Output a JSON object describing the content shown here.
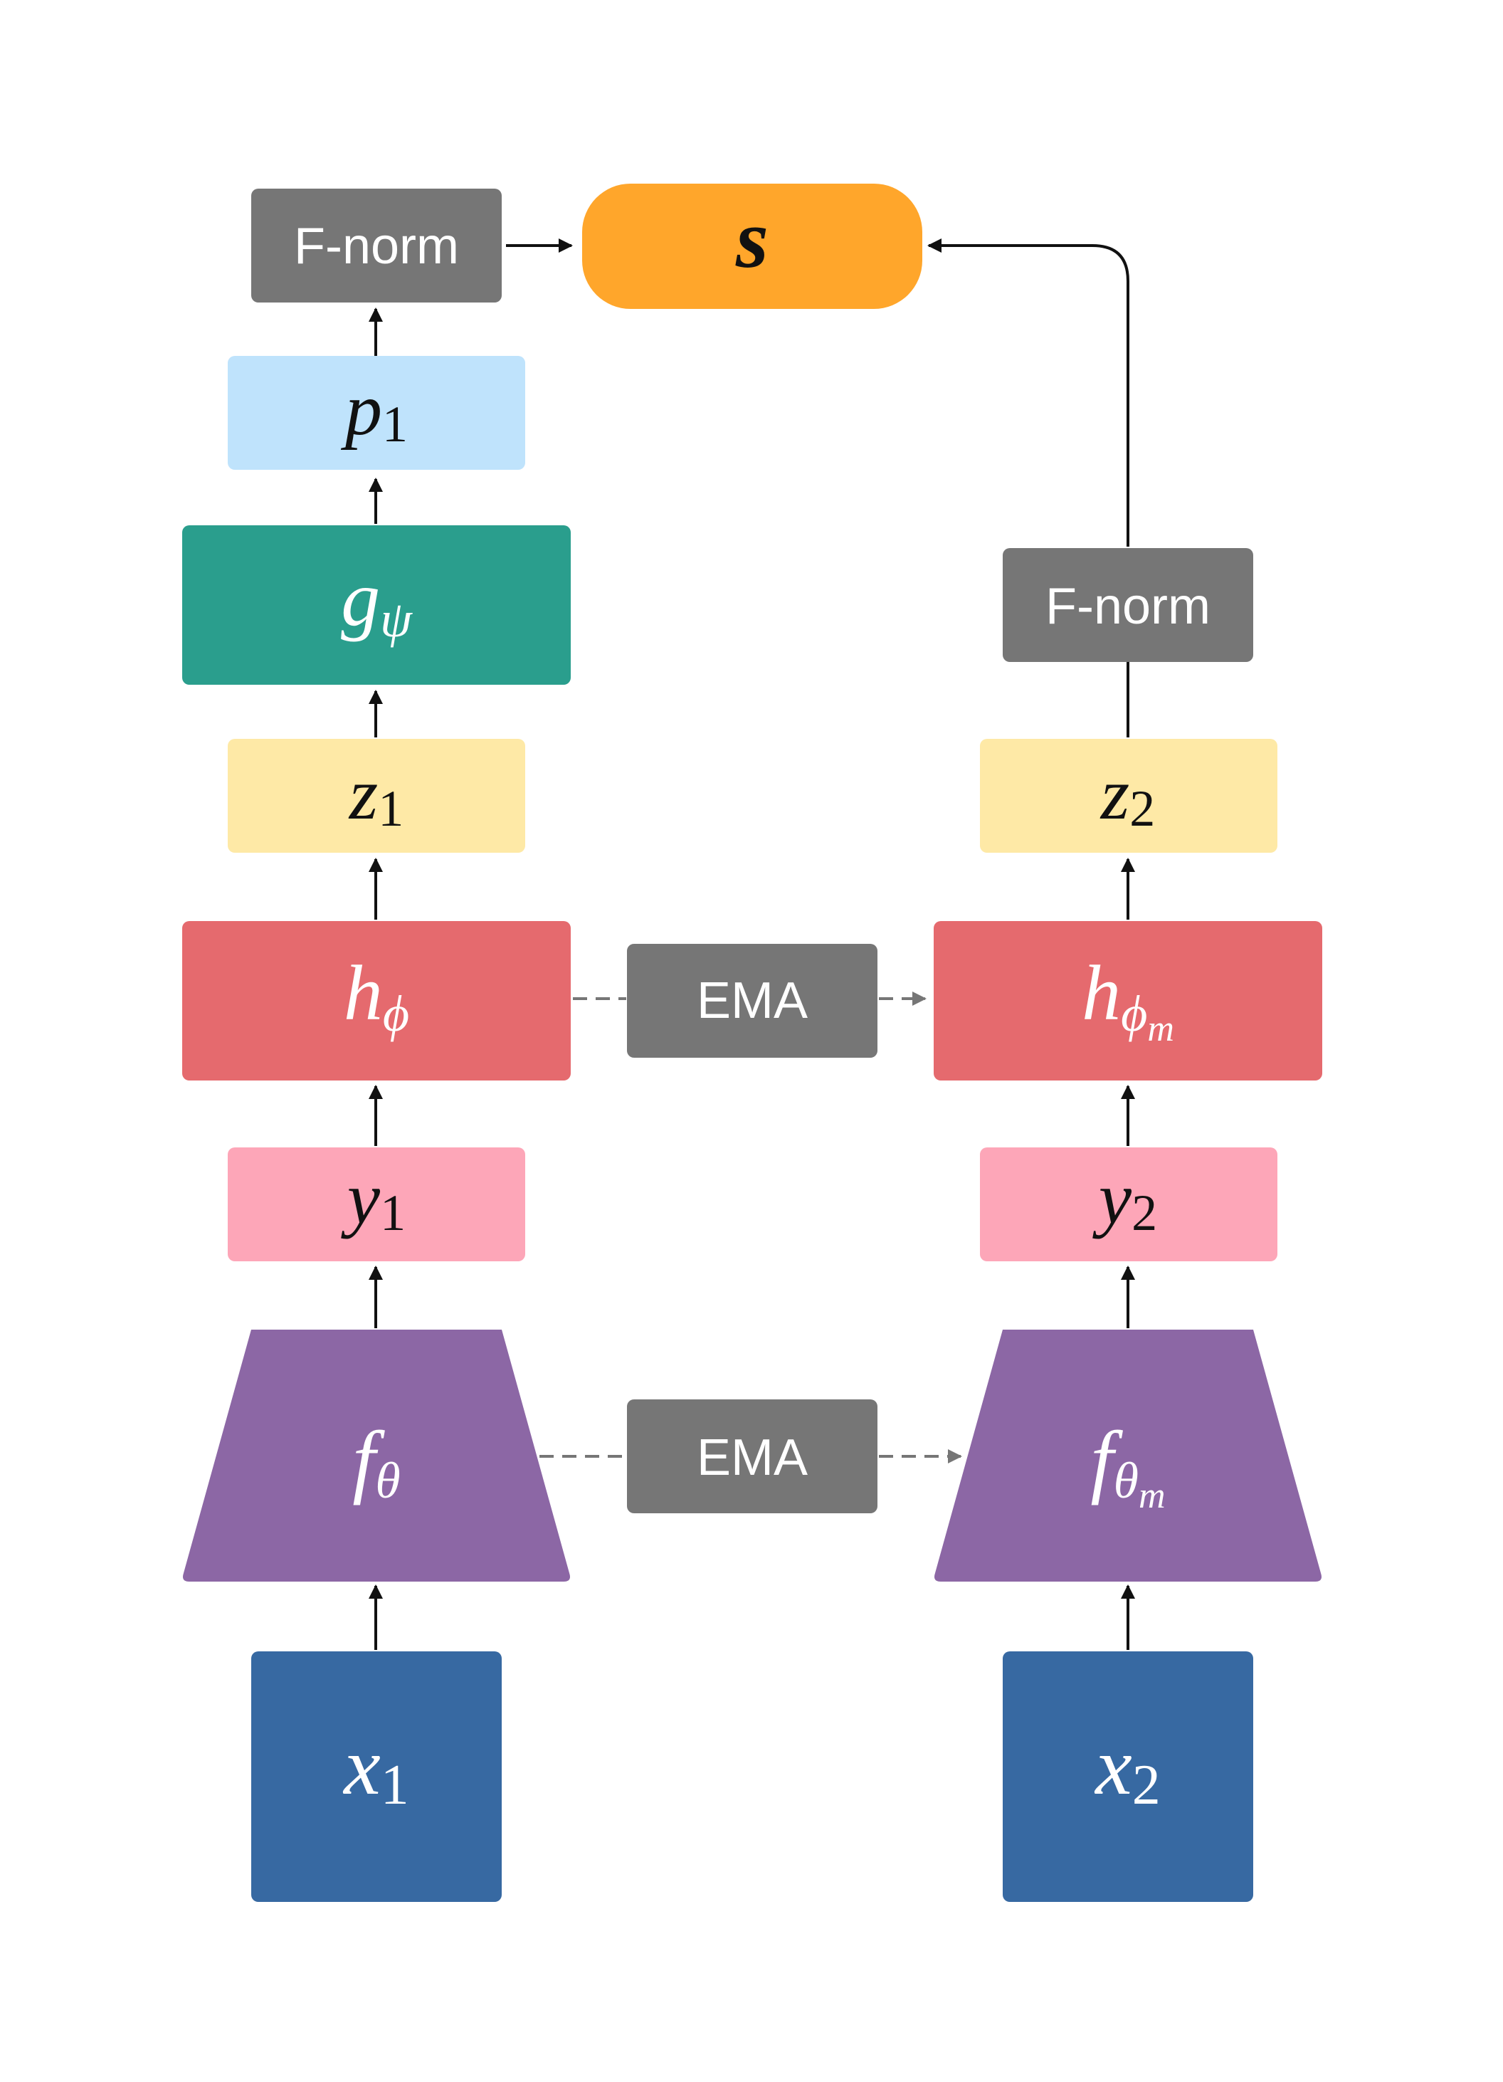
{
  "nodes": {
    "s": {
      "label": "s"
    },
    "fnorm1": {
      "label": "F-norm"
    },
    "fnorm2": {
      "label": "F-norm"
    },
    "p1": {
      "base": "p",
      "sub": "1"
    },
    "g_psi": {
      "base": "g",
      "sub": "ψ"
    },
    "z1": {
      "base": "z",
      "sub": "1"
    },
    "z2": {
      "base": "z",
      "sub": "2"
    },
    "h_phi": {
      "base": "h",
      "sub": "ϕ"
    },
    "h_phi_m": {
      "base": "h",
      "sub": "ϕ",
      "subsub": "m"
    },
    "y1": {
      "base": "y",
      "sub": "1"
    },
    "y2": {
      "base": "y",
      "sub": "2"
    },
    "f_theta": {
      "base": "f",
      "sub": "θ"
    },
    "f_theta_m": {
      "base": "f",
      "sub": "θ",
      "subsub": "m"
    },
    "x1": {
      "base": "x",
      "sub": "1"
    },
    "x2": {
      "base": "x",
      "sub": "2"
    },
    "ema1": {
      "label": "EMA"
    },
    "ema2": {
      "label": "EMA"
    }
  },
  "colors": {
    "gray": "#767676",
    "orange": "#FFA62B",
    "light_blue": "#BFE3FC",
    "teal": "#2A9E8D",
    "yellow": "#FEE9A6",
    "red": "#E56A6E",
    "pink": "#FDA6B8",
    "purple": "#8C67A5",
    "blue": "#3769A2",
    "arrow": "#111111",
    "dashed": "#767676"
  }
}
